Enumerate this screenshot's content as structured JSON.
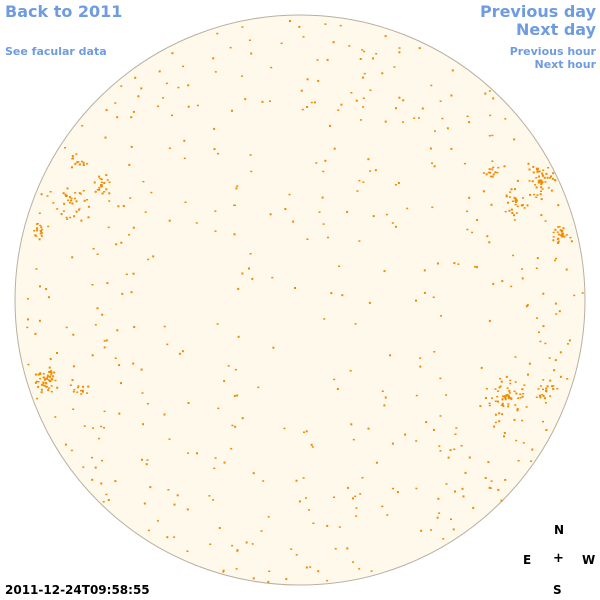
{
  "nav": {
    "back_label": "Back to 2011",
    "facular_label": "See facular data",
    "previous_day_label": "Previous day",
    "next_day_label": "Next day",
    "previous_hour_label": "Previous hour",
    "next_hour_label": "Next hour"
  },
  "image": {
    "timestamp": "2011-12-24T09:58:55"
  },
  "compass": {
    "north": "N",
    "south": "S",
    "east": "E",
    "west": "W",
    "center": "+"
  },
  "colors": {
    "link": "#6f9be0",
    "disc_fill": "#fff9ec",
    "disc_outline": "#b8b0a0",
    "facula": "#f08a00"
  }
}
